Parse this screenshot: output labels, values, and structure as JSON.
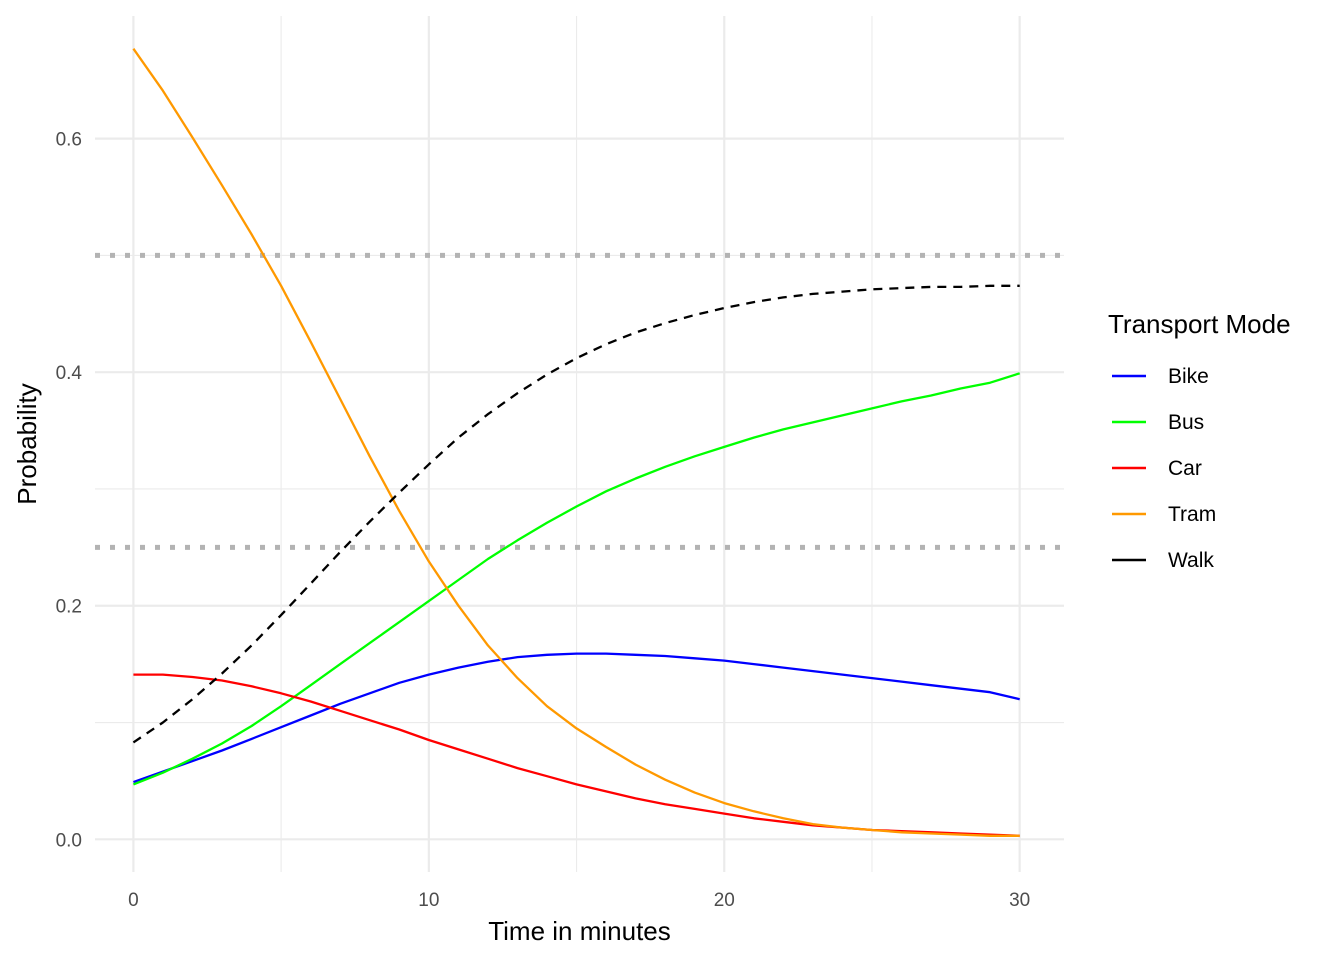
{
  "chart_data": {
    "type": "line",
    "title": "",
    "xlabel": "Time in minutes",
    "ylabel": "Probability",
    "xlim": [
      -1.3,
      31.5
    ],
    "ylim": [
      -0.028,
      0.705
    ],
    "x_ticks": [
      0,
      10,
      20,
      30
    ],
    "x_tick_labels": [
      "0",
      "10",
      "20",
      "30"
    ],
    "x_minor_ticks": [
      5,
      15,
      25
    ],
    "y_ticks": [
      0.0,
      0.2,
      0.4,
      0.6
    ],
    "y_tick_labels": [
      "0.0",
      "0.2",
      "0.4",
      "0.6"
    ],
    "y_minor_ticks": [
      0.1,
      0.3,
      0.5
    ],
    "grid": true,
    "legend_position": "right",
    "legend_title": "Transport Mode",
    "reference_lines": [
      {
        "y": 0.5,
        "style": "dotted",
        "color": "#b3b3b3"
      },
      {
        "y": 0.25,
        "style": "dotted",
        "color": "#b3b3b3"
      }
    ],
    "x": [
      0,
      1,
      2,
      3,
      4,
      5,
      6,
      7,
      8,
      9,
      10,
      11,
      12,
      13,
      14,
      15,
      16,
      17,
      18,
      19,
      20,
      21,
      22,
      23,
      24,
      25,
      26,
      27,
      28,
      29,
      30
    ],
    "series": [
      {
        "name": "Bike",
        "color": "#0000ff",
        "dashed": false,
        "values": [
          0.049,
          0.058,
          0.067,
          0.076,
          0.086,
          0.096,
          0.106,
          0.116,
          0.125,
          0.134,
          0.141,
          0.147,
          0.152,
          0.156,
          0.158,
          0.159,
          0.159,
          0.158,
          0.157,
          0.155,
          0.153,
          0.15,
          0.147,
          0.144,
          0.141,
          0.138,
          0.135,
          0.132,
          0.129,
          0.126,
          0.12
        ]
      },
      {
        "name": "Bus",
        "color": "#00ff00",
        "dashed": false,
        "values": [
          0.047,
          0.057,
          0.069,
          0.082,
          0.097,
          0.114,
          0.132,
          0.15,
          0.168,
          0.186,
          0.204,
          0.222,
          0.24,
          0.256,
          0.271,
          0.285,
          0.298,
          0.309,
          0.319,
          0.328,
          0.336,
          0.344,
          0.351,
          0.357,
          0.363,
          0.369,
          0.375,
          0.38,
          0.386,
          0.391,
          0.399
        ]
      },
      {
        "name": "Car",
        "color": "#ff0000",
        "dashed": false,
        "values": [
          0.141,
          0.141,
          0.139,
          0.136,
          0.131,
          0.125,
          0.118,
          0.11,
          0.102,
          0.094,
          0.085,
          0.077,
          0.069,
          0.061,
          0.054,
          0.047,
          0.041,
          0.035,
          0.03,
          0.026,
          0.022,
          0.018,
          0.015,
          0.012,
          0.01,
          0.008,
          0.007,
          0.006,
          0.005,
          0.004,
          0.003
        ]
      },
      {
        "name": "Tram",
        "color": "#ff9900",
        "dashed": false,
        "values": [
          0.677,
          0.641,
          0.601,
          0.56,
          0.518,
          0.474,
          0.426,
          0.377,
          0.328,
          0.281,
          0.238,
          0.2,
          0.166,
          0.138,
          0.114,
          0.095,
          0.079,
          0.064,
          0.051,
          0.04,
          0.031,
          0.024,
          0.018,
          0.013,
          0.01,
          0.008,
          0.006,
          0.005,
          0.004,
          0.003,
          0.003
        ]
      },
      {
        "name": "Walk",
        "color": "#000000",
        "dashed": true,
        "values": [
          0.083,
          0.1,
          0.12,
          0.142,
          0.166,
          0.192,
          0.219,
          0.246,
          0.272,
          0.297,
          0.321,
          0.344,
          0.364,
          0.382,
          0.398,
          0.412,
          0.424,
          0.434,
          0.442,
          0.449,
          0.455,
          0.46,
          0.464,
          0.467,
          0.469,
          0.471,
          0.472,
          0.473,
          0.473,
          0.474,
          0.474
        ]
      }
    ]
  }
}
